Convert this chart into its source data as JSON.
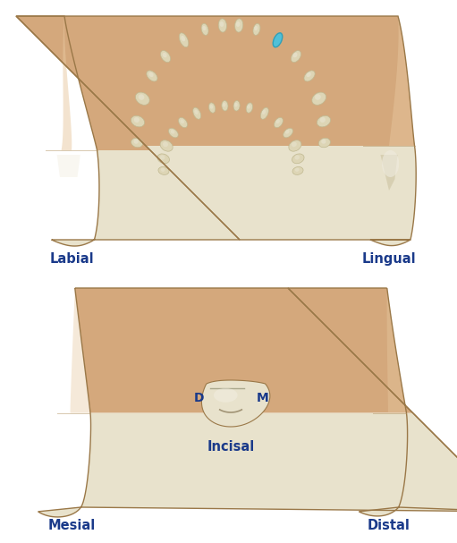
{
  "bg_color": "#ffffff",
  "root_color": "#d4a87c",
  "root_highlight": "#e8c9a0",
  "root_shadow": "#b8885a",
  "crown_color": "#e8e2cc",
  "crown_highlight": "#f5f2e8",
  "crown_shadow": "#c8bc98",
  "arch_color": "#ddd5b5",
  "arch_outline": "#c0b890",
  "highlight_color": "#50c0d8",
  "label_color": "#1a3a8a",
  "label_fontsize": 10.5,
  "dm_fontsize": 10,
  "labels": {
    "labial": "Labial",
    "lingual": "Lingual",
    "mesial": "Mesial",
    "distal": "Distal",
    "incisal": "Incisal",
    "D": "D",
    "M": "M"
  }
}
